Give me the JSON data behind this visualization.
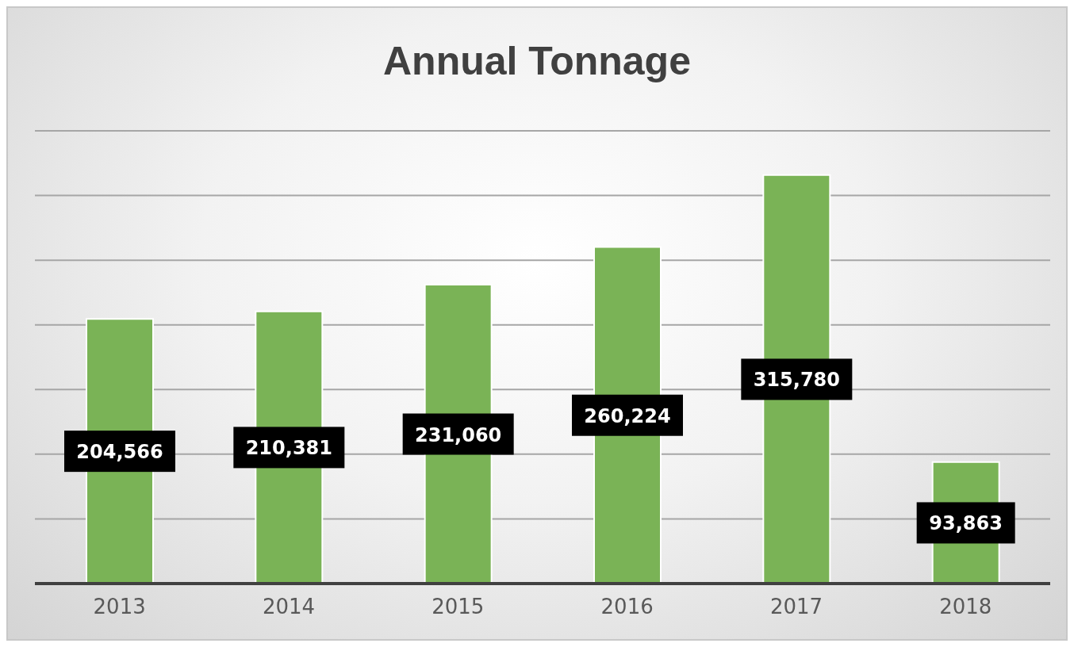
{
  "chart_data": {
    "type": "bar",
    "title": "Annual Tonnage",
    "categories": [
      "2013",
      "2014",
      "2015",
      "2016",
      "2017",
      "2018"
    ],
    "values": [
      204566,
      210381,
      231060,
      260224,
      315780,
      93863
    ],
    "value_labels": [
      "204,566",
      "210,381",
      "231,060",
      "260,224",
      "315,780",
      "93,863"
    ],
    "color": "#7ab356",
    "tick_labels": "x",
    "grid": "y",
    "legend": false
  }
}
